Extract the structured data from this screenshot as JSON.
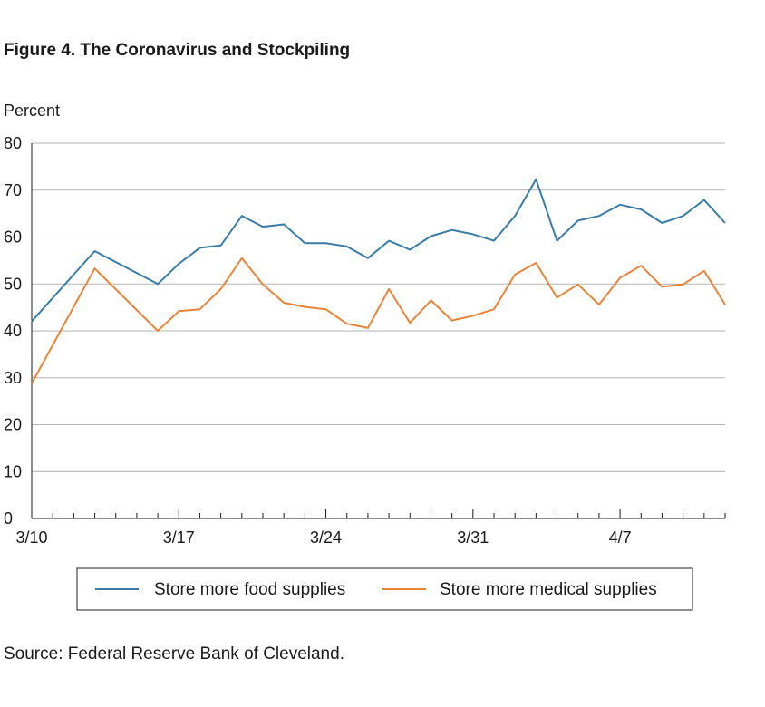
{
  "title": "Figure 4. The Coronavirus and Stockpiling",
  "source": "Source: Federal Reserve Bank of Cleveland.",
  "chart_data": {
    "type": "line",
    "ylabel": "Percent",
    "xlabel": "",
    "ylim": [
      0,
      80
    ],
    "yticks": [
      0,
      10,
      20,
      30,
      40,
      50,
      60,
      70,
      80
    ],
    "xlim": [
      0,
      33
    ],
    "xtick_labels": [
      {
        "x": 0,
        "label": "3/10"
      },
      {
        "x": 7,
        "label": "3/17"
      },
      {
        "x": 14,
        "label": "3/24"
      },
      {
        "x": 21,
        "label": "3/31"
      },
      {
        "x": 28,
        "label": "4/7"
      }
    ],
    "grid": true,
    "legend": "bottom",
    "series": [
      {
        "name": "Store more food supplies",
        "color": "#3a7ca5",
        "points": [
          [
            0,
            42
          ],
          [
            3,
            57
          ],
          [
            6,
            50
          ],
          [
            7,
            54.3
          ],
          [
            8,
            57.7
          ],
          [
            9,
            58.2
          ],
          [
            10,
            64.5
          ],
          [
            11,
            62.2
          ],
          [
            12,
            62.7
          ],
          [
            13,
            58.7
          ],
          [
            14,
            58.7
          ],
          [
            15,
            58
          ],
          [
            16,
            55.5
          ],
          [
            17,
            59.2
          ],
          [
            18,
            57.3
          ],
          [
            19,
            60.2
          ],
          [
            20,
            61.5
          ],
          [
            21,
            60.6
          ],
          [
            22,
            59.2
          ],
          [
            23,
            64.5
          ],
          [
            24,
            72.3
          ],
          [
            25,
            59.2
          ],
          [
            26,
            63.5
          ],
          [
            27,
            64.5
          ],
          [
            28,
            66.9
          ],
          [
            29,
            65.9
          ],
          [
            30,
            63
          ],
          [
            31,
            64.5
          ],
          [
            32,
            67.9
          ],
          [
            33,
            63
          ]
        ]
      },
      {
        "name": "Store more medical supplies",
        "color": "#e8843a",
        "points": [
          [
            0,
            28.8
          ],
          [
            3,
            53.3
          ],
          [
            6,
            40
          ],
          [
            7,
            44.2
          ],
          [
            8,
            44.6
          ],
          [
            9,
            48.9
          ],
          [
            10,
            55.5
          ],
          [
            11,
            49.9
          ],
          [
            12,
            46
          ],
          [
            13,
            45.1
          ],
          [
            14,
            44.6
          ],
          [
            15,
            41.5
          ],
          [
            16,
            40.6
          ],
          [
            17,
            48.9
          ],
          [
            18,
            41.7
          ],
          [
            19,
            46.5
          ],
          [
            20,
            42.2
          ],
          [
            21,
            43.2
          ],
          [
            22,
            44.6
          ],
          [
            23,
            52
          ],
          [
            24,
            54.5
          ],
          [
            25,
            47.1
          ],
          [
            26,
            49.9
          ],
          [
            27,
            45.6
          ],
          [
            28,
            51.3
          ],
          [
            29,
            53.9
          ],
          [
            30,
            49.4
          ],
          [
            31,
            49.9
          ],
          [
            32,
            52.8
          ],
          [
            33,
            45.6
          ]
        ]
      }
    ]
  }
}
